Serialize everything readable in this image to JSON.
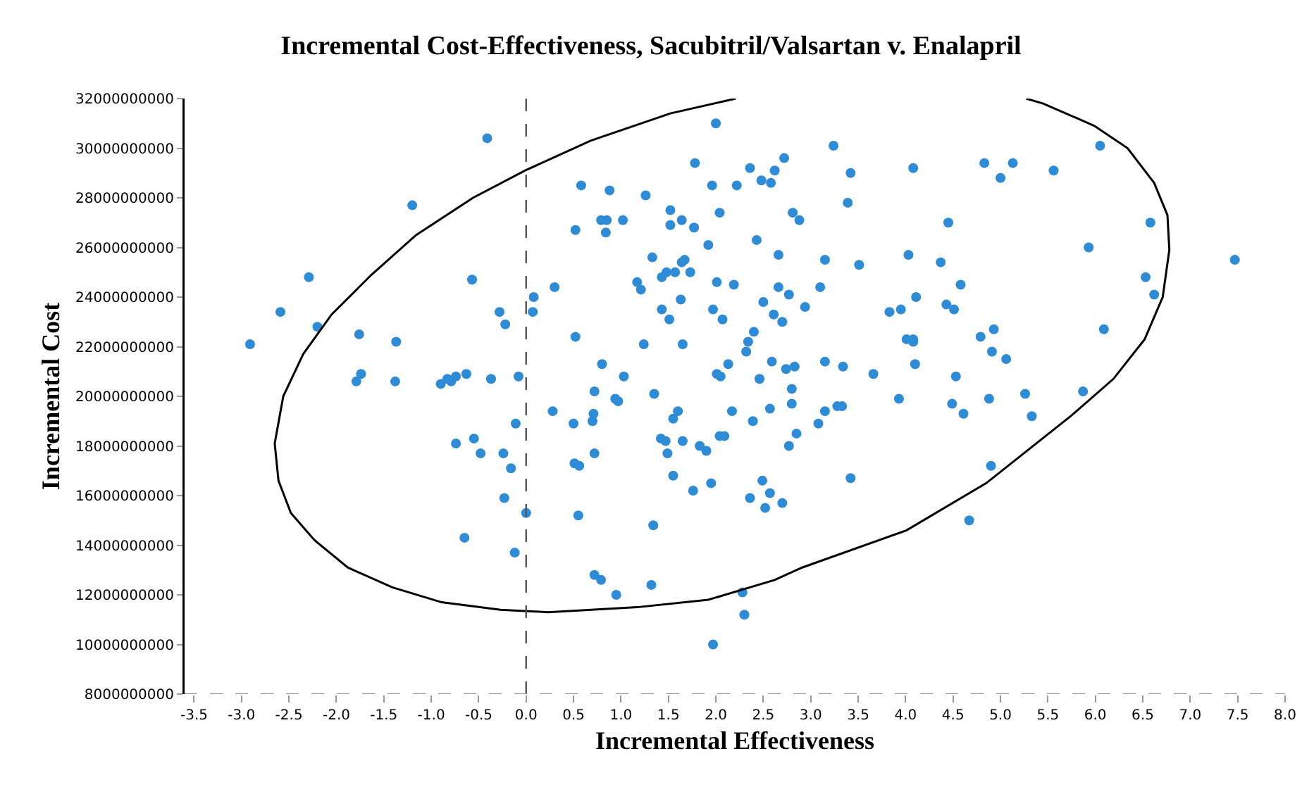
{
  "chart_data": {
    "type": "scatter",
    "title": "Incremental Cost-Effectiveness, Sacubitril/Valsartan v. Enalapril",
    "xlabel": "Incremental Effectiveness",
    "ylabel": "Incremental Cost",
    "xlim": [
      -3.6,
      8.0
    ],
    "xticks": [
      -3.5,
      {
        "value": -3,
        "label": "-3.0"
      },
      -2.5,
      {
        "value": -2,
        "label": "-2.0"
      },
      -1.5,
      {
        "value": -1,
        "label": "-1.0"
      },
      -0.5,
      {
        "value": 0,
        "label": "0.0"
      },
      0.5,
      {
        "value": 1,
        "label": "1.0"
      },
      1.5,
      {
        "value": 2,
        "label": "2.0"
      },
      2.5,
      {
        "value": 3,
        "label": "3.0"
      },
      3.5,
      {
        "value": 4,
        "label": "4.0"
      },
      4.5,
      {
        "value": 5,
        "label": "5.0"
      },
      5.5,
      {
        "value": 6,
        "label": "6.0"
      },
      6.5,
      {
        "value": 7,
        "label": "7.0"
      },
      7.5,
      {
        "value": 8,
        "label": "8.0"
      }
    ],
    "ylim": [
      8000000000,
      32000000000
    ],
    "yticks": [
      8000000000,
      10000000000,
      12000000000,
      14000000000,
      16000000000,
      18000000000,
      20000000000,
      22000000000,
      24000000000,
      26000000000,
      28000000000,
      30000000000,
      32000000000
    ],
    "grid": false,
    "ref_lines": [
      {
        "axis": "x",
        "value": 0,
        "color": "#555555",
        "line_style": "dashed"
      },
      {
        "axis": "y",
        "value": 8000000000,
        "color": "#999999",
        "line_style": "dashed"
      }
    ],
    "series": [
      {
        "marker": "circle",
        "color": "#2e8bd6",
        "x": [
          -0.41,
          -1.2,
          -2.29,
          -0.57,
          -2.59,
          -2.2,
          0.08,
          0.07,
          -0.28,
          -0.22,
          -2.91,
          -1.76,
          -1.37,
          -1.74,
          -1.79,
          -1.38,
          -0.9,
          -0.83,
          -0.79,
          -0.74,
          -0.63,
          -0.37,
          -0.08,
          -0.11,
          -0.55,
          -0.74,
          -0.48,
          -0.24,
          -0.16,
          -0.23,
          0.0,
          -0.65,
          -0.12,
          2.0,
          1.78,
          2.36,
          2.72,
          2.62,
          2.48,
          2.58,
          0.58,
          0.88,
          1.96,
          2.22,
          1.26,
          2.81,
          2.88,
          1.52,
          2.04,
          0.79,
          0.85,
          0.84,
          1.02,
          0.52,
          1.52,
          1.64,
          1.77,
          1.92,
          2.43,
          2.66,
          1.33,
          1.67,
          1.64,
          1.57,
          1.48,
          1.43,
          1.17,
          1.21,
          1.73,
          2.01,
          2.19,
          2.66,
          2.77,
          0.3,
          1.63,
          1.43,
          1.51,
          1.97,
          2.07,
          2.5,
          2.61,
          2.7,
          2.4,
          2.34,
          2.32,
          0.52,
          1.24,
          1.65,
          2.13,
          2.59,
          2.74,
          2.83,
          0.8,
          1.03,
          2.01,
          2.05,
          2.46,
          0.72,
          1.35,
          0.94,
          0.97,
          2.8,
          2.8,
          0.28,
          0.71,
          0.7,
          0.5,
          1.6,
          1.55,
          2.17,
          2.57,
          2.39,
          2.85,
          2.77,
          1.42,
          1.47,
          1.65,
          1.49,
          1.83,
          1.9,
          2.04,
          2.09,
          0.72,
          0.51,
          0.56,
          1.55,
          1.76,
          1.95,
          2.49,
          2.57,
          2.36,
          2.52,
          2.7,
          0.55,
          1.34,
          0.72,
          0.79,
          0.95,
          1.32,
          2.28,
          2.3,
          1.97,
          3.24,
          3.42,
          4.08,
          4.83,
          5.13,
          5.0,
          5.56,
          3.39,
          4.45,
          3.15,
          3.51,
          4.03,
          4.37,
          3.1,
          4.58,
          2.94,
          3.83,
          3.95,
          4.11,
          4.43,
          4.51,
          4.01,
          4.08,
          4.08,
          4.79,
          4.93,
          4.91,
          5.06,
          3.15,
          3.34,
          3.66,
          4.1,
          4.53,
          3.15,
          3.28,
          3.33,
          3.08,
          3.93,
          4.49,
          4.61,
          4.88,
          5.26,
          5.33,
          3.42,
          4.9,
          4.67,
          6.05,
          6.58,
          5.93,
          7.47,
          6.53,
          6.62,
          6.09,
          5.87
        ],
        "values": [
          30400000000,
          27700000000,
          24800000000,
          24700000000,
          23400000000,
          22800000000,
          24000000000,
          23400000000,
          23400000000,
          22900000000,
          22100000000,
          22500000000,
          22200000000,
          20900000000,
          20600000000,
          20600000000,
          20500000000,
          20700000000,
          20600000000,
          20800000000,
          20900000000,
          20700000000,
          20800000000,
          18900000000,
          18300000000,
          18100000000,
          17700000000,
          17700000000,
          17100000000,
          15900000000,
          15300000000,
          14300000000,
          13700000000,
          31000000000,
          29400000000,
          29200000000,
          29600000000,
          29100000000,
          28700000000,
          28600000000,
          28500000000,
          28300000000,
          28500000000,
          28500000000,
          28100000000,
          27400000000,
          27100000000,
          27500000000,
          27400000000,
          27100000000,
          27100000000,
          26600000000,
          27100000000,
          26700000000,
          26900000000,
          27100000000,
          26800000000,
          26100000000,
          26300000000,
          25700000000,
          25600000000,
          25500000000,
          25400000000,
          25000000000,
          25000000000,
          24800000000,
          24600000000,
          24300000000,
          25000000000,
          24600000000,
          24500000000,
          24400000000,
          24100000000,
          24400000000,
          23900000000,
          23500000000,
          23100000000,
          23500000000,
          23100000000,
          23800000000,
          23300000000,
          23000000000,
          22600000000,
          22200000000,
          21800000000,
          22400000000,
          22100000000,
          22100000000,
          21300000000,
          21400000000,
          21100000000,
          21200000000,
          21300000000,
          20800000000,
          20900000000,
          20800000000,
          20700000000,
          20200000000,
          20100000000,
          19900000000,
          19800000000,
          20300000000,
          19700000000,
          19400000000,
          19300000000,
          19000000000,
          18900000000,
          19400000000,
          19100000000,
          19400000000,
          19500000000,
          19000000000,
          18500000000,
          18000000000,
          18300000000,
          18200000000,
          18200000000,
          17700000000,
          18000000000,
          17800000000,
          18400000000,
          18400000000,
          17700000000,
          17300000000,
          17200000000,
          16800000000,
          16200000000,
          16500000000,
          16600000000,
          16100000000,
          15900000000,
          15500000000,
          15700000000,
          15200000000,
          14800000000,
          12800000000,
          12600000000,
          12000000000,
          12400000000,
          12100000000,
          11200000000,
          10000000000,
          30100000000,
          29000000000,
          29200000000,
          29400000000,
          29400000000,
          28800000000,
          29100000000,
          27800000000,
          27000000000,
          25500000000,
          25300000000,
          25700000000,
          25400000000,
          24400000000,
          24500000000,
          23600000000,
          23400000000,
          23500000000,
          24000000000,
          23700000000,
          23500000000,
          22300000000,
          22300000000,
          22200000000,
          22400000000,
          22700000000,
          21800000000,
          21500000000,
          21400000000,
          21200000000,
          20900000000,
          21300000000,
          20800000000,
          19400000000,
          19600000000,
          19600000000,
          18900000000,
          19900000000,
          19700000000,
          19300000000,
          19900000000,
          20100000000,
          19200000000,
          16700000000,
          17200000000,
          15000000000,
          30100000000,
          27000000000,
          26000000000,
          25500000000,
          24800000000,
          24100000000,
          22700000000,
          20200000000
        ]
      },
      {
        "type": "line",
        "marker": "none",
        "color": "#000000",
        "x": [
          2.21,
          1.52,
          0.68,
          -0.01,
          -0.56,
          -1.16,
          -1.63,
          -2.05,
          -2.35,
          -2.56,
          -2.65,
          -2.61,
          -2.48,
          -2.23,
          -1.88,
          -1.41,
          -0.89,
          -0.27,
          0.23,
          1.17,
          1.92,
          2.62,
          2.91,
          4.01,
          4.85,
          5.74,
          6.19,
          6.52,
          6.71,
          6.78,
          6.76,
          6.62,
          6.34,
          5.99,
          5.45,
          5.27
        ],
        "values": [
          32000000000,
          31400000000,
          30300000000,
          29100000000,
          28000000000,
          26500000000,
          24900000000,
          23300000000,
          21700000000,
          20000000000,
          18100000000,
          16600000000,
          15300000000,
          14200000000,
          13100000000,
          12300000000,
          11700000000,
          11400000000,
          11300000000,
          11500000000,
          11800000000,
          12600000000,
          13100000000,
          14600000000,
          16500000000,
          19200000000,
          20700000000,
          22300000000,
          24000000000,
          25900000000,
          27300000000,
          28600000000,
          30000000000,
          30900000000,
          31800000000,
          32000000000
        ]
      }
    ]
  }
}
